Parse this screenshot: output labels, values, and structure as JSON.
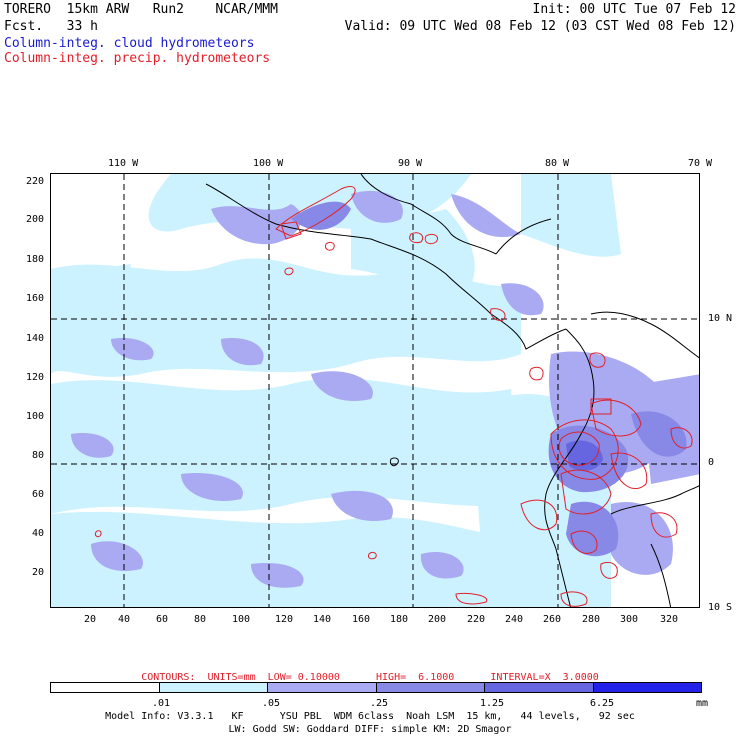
{
  "header": {
    "left_line1": "TORERO  15km ARW   Run2    NCAR/MMM",
    "left_line2": "Fcst.   33 h",
    "right_line1": "Init: 00 UTC Tue 07 Feb 12",
    "right_line2": "Valid: 09 UTC Wed 08 Feb 12 (03 CST Wed 08 Feb 12)",
    "legend_blue": "Column-integ. cloud hydrometeors",
    "legend_red": "Column-integ. precip. hydrometeors"
  },
  "map": {
    "top_lon_labels": [
      "110 W",
      "100 W",
      "90 W",
      "80 W",
      "70 W"
    ],
    "right_lat_labels": [
      "10 N",
      "0",
      "10 S"
    ],
    "left_y_ticks": [
      "220",
      "200",
      "180",
      "160",
      "140",
      "120",
      "100",
      "80",
      "60",
      "40",
      "20"
    ],
    "bottom_x_ticks": [
      "20",
      "40",
      "60",
      "80",
      "100",
      "120",
      "140",
      "160",
      "180",
      "200",
      "220",
      "240",
      "260",
      "280",
      "300",
      "320"
    ],
    "colors": {
      "cloud_light": "#ccf2ff",
      "cloud_mid": "#aaaaf2",
      "cloud_dark": "#8888e6",
      "precip_contour": "#e0202a",
      "coastline": "#000000"
    }
  },
  "contours_text": "CONTOURS:  UNITS=mm  LOW= 0.10000      HIGH=  6.1000      INTERVAL=X  3.0000",
  "colorbar": {
    "labels": [
      ".01",
      ".05",
      ".25",
      "1.25",
      "6.25"
    ],
    "units": "mm",
    "colors": [
      "#ffffff",
      "#ccf2ff",
      "#aaaaf2",
      "#8888e6",
      "#6666e0",
      "#2222e8"
    ]
  },
  "footer": {
    "line1": "Model Info: V3.3.1   KF      YSU PBL  WDM 6class  Noah LSM  15 km,   44 levels,   92 sec",
    "line2": "LW: Godd SW: Goddard DIFF: simple KM: 2D Smagor"
  }
}
